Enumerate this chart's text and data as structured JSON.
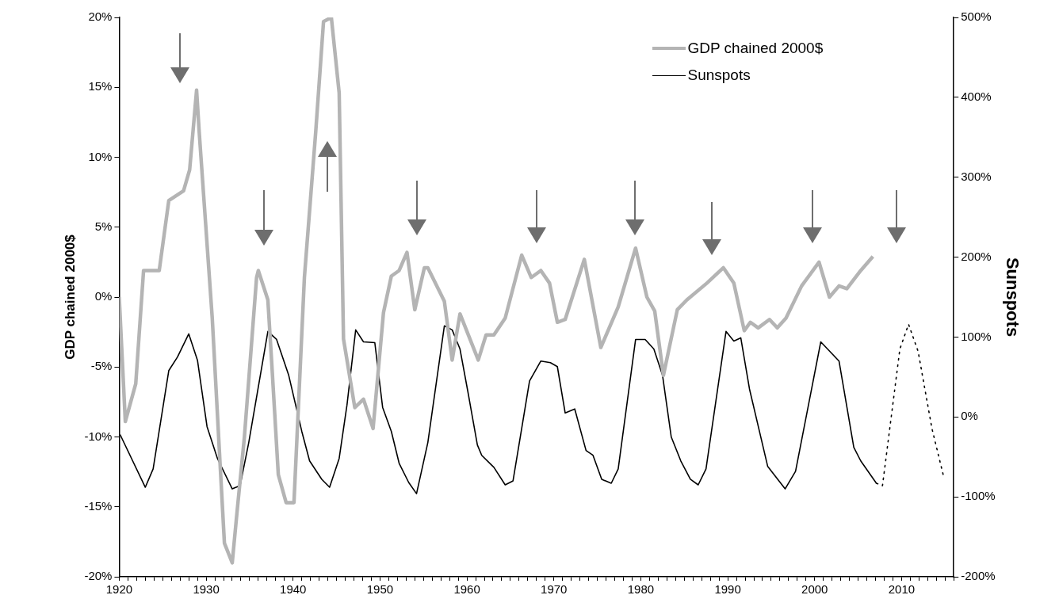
{
  "chart_data": {
    "type": "line",
    "xlabel": null,
    "ylabel": "GDP chained 2000$",
    "y2label": "Sunspots",
    "legend": "top right",
    "grid": false,
    "marker": "none",
    "xlim": [
      1920,
      2016
    ],
    "xticks": [
      1920,
      {
        "value": 1921,
        "label": null
      },
      {
        "value": 1922,
        "label": null
      },
      {
        "value": 1923,
        "label": null
      },
      {
        "value": 1924,
        "label": null
      },
      {
        "value": 1925,
        "label": null
      },
      {
        "value": 1926,
        "label": null
      },
      {
        "value": 1927,
        "label": null
      },
      {
        "value": 1928,
        "label": null
      },
      {
        "value": 1929,
        "label": null
      },
      1930,
      {
        "value": 1931,
        "label": null
      },
      {
        "value": 1932,
        "label": null
      },
      {
        "value": 1933,
        "label": null
      },
      {
        "value": 1934,
        "label": null
      },
      {
        "value": 1935,
        "label": null
      },
      {
        "value": 1936,
        "label": null
      },
      {
        "value": 1937,
        "label": null
      },
      {
        "value": 1938,
        "label": null
      },
      {
        "value": 1939,
        "label": null
      },
      1940,
      {
        "value": 1941,
        "label": null
      },
      {
        "value": 1942,
        "label": null
      },
      {
        "value": 1943,
        "label": null
      },
      {
        "value": 1944,
        "label": null
      },
      {
        "value": 1945,
        "label": null
      },
      {
        "value": 1946,
        "label": null
      },
      {
        "value": 1947,
        "label": null
      },
      {
        "value": 1948,
        "label": null
      },
      {
        "value": 1949,
        "label": null
      },
      1950,
      {
        "value": 1951,
        "label": null
      },
      {
        "value": 1952,
        "label": null
      },
      {
        "value": 1953,
        "label": null
      },
      {
        "value": 1954,
        "label": null
      },
      {
        "value": 1955,
        "label": null
      },
      {
        "value": 1956,
        "label": null
      },
      {
        "value": 1957,
        "label": null
      },
      {
        "value": 1958,
        "label": null
      },
      {
        "value": 1959,
        "label": null
      },
      1960,
      {
        "value": 1961,
        "label": null
      },
      {
        "value": 1962,
        "label": null
      },
      {
        "value": 1963,
        "label": null
      },
      {
        "value": 1964,
        "label": null
      },
      {
        "value": 1965,
        "label": null
      },
      {
        "value": 1966,
        "label": null
      },
      {
        "value": 1967,
        "label": null
      },
      {
        "value": 1968,
        "label": null
      },
      {
        "value": 1969,
        "label": null
      },
      1970,
      {
        "value": 1971,
        "label": null
      },
      {
        "value": 1972,
        "label": null
      },
      {
        "value": 1973,
        "label": null
      },
      {
        "value": 1974,
        "label": null
      },
      {
        "value": 1975,
        "label": null
      },
      {
        "value": 1976,
        "label": null
      },
      {
        "value": 1977,
        "label": null
      },
      {
        "value": 1978,
        "label": null
      },
      {
        "value": 1979,
        "label": null
      },
      1980,
      {
        "value": 1981,
        "label": null
      },
      {
        "value": 1982,
        "label": null
      },
      {
        "value": 1983,
        "label": null
      },
      {
        "value": 1984,
        "label": null
      },
      {
        "value": 1985,
        "label": null
      },
      {
        "value": 1986,
        "label": null
      },
      {
        "value": 1987,
        "label": null
      },
      {
        "value": 1988,
        "label": null
      },
      {
        "value": 1989,
        "label": null
      },
      1990,
      {
        "value": 1991,
        "label": null
      },
      {
        "value": 1992,
        "label": null
      },
      {
        "value": 1993,
        "label": null
      },
      {
        "value": 1994,
        "label": null
      },
      {
        "value": 1995,
        "label": null
      },
      {
        "value": 1996,
        "label": null
      },
      {
        "value": 1997,
        "label": null
      },
      {
        "value": 1998,
        "label": null
      },
      {
        "value": 1999,
        "label": null
      },
      2000,
      {
        "value": 2001,
        "label": null
      },
      {
        "value": 2002,
        "label": null
      },
      {
        "value": 2003,
        "label": null
      },
      {
        "value": 2004,
        "label": null
      },
      {
        "value": 2005,
        "label": null
      },
      {
        "value": 2006,
        "label": null
      },
      {
        "value": 2007,
        "label": null
      },
      {
        "value": 2008,
        "label": null
      },
      {
        "value": 2009,
        "label": null
      },
      2010,
      {
        "value": 2011,
        "label": null
      },
      {
        "value": 2012,
        "label": null
      },
      {
        "value": 2013,
        "label": null
      },
      {
        "value": 2014,
        "label": null
      },
      {
        "value": 2015,
        "label": null
      },
      {
        "value": 2016,
        "label": null
      }
    ],
    "ylim": [
      -20,
      20
    ],
    "yticks": [
      {
        "value": -20,
        "label": "-20%"
      },
      {
        "value": -15,
        "label": "-15%"
      },
      {
        "value": -10,
        "label": "-10%"
      },
      {
        "value": -5,
        "label": "-5%"
      },
      {
        "value": 0,
        "label": "0%"
      },
      {
        "value": 5,
        "label": "5%"
      },
      {
        "value": 10,
        "label": "10%"
      },
      {
        "value": 15,
        "label": "15%"
      },
      {
        "value": 20,
        "label": "20%"
      }
    ],
    "y2lim": [
      -200,
      500
    ],
    "y2ticks": [
      {
        "value": -200,
        "label": "-200%"
      },
      {
        "value": -100,
        "label": "-100%"
      },
      {
        "value": 0,
        "label": "0%"
      },
      {
        "value": 100,
        "label": "100%"
      },
      {
        "value": 200,
        "label": "200%"
      },
      {
        "value": 300,
        "label": "300%"
      },
      {
        "value": 400,
        "label": "400%"
      },
      {
        "value": 500,
        "label": "500%"
      }
    ],
    "series": [
      {
        "name": "GDP chained 2000$",
        "color": "#b4b4b4",
        "axis": "y",
        "x": [
          1920,
          1920.7,
          1921.9,
          1922.8,
          1924.6,
          1925.7,
          1927.4,
          1928.1,
          1928.9,
          1929.2,
          1930.7,
          1931.6,
          1932.1,
          1933,
          1933.5,
          1934.4,
          1935.8,
          1936,
          1937.1,
          1937.6,
          1938.3,
          1939.2,
          1940.1,
          1941.3,
          1942.6,
          1943.5,
          1944.4,
          1945.3,
          1945.8,
          1947.1,
          1948.1,
          1949.2,
          1950.4,
          1951.3,
          1952.2,
          1953.1,
          1954,
          1955.1,
          1955.5,
          1957.4,
          1958.3,
          1959.2,
          1961.3,
          1962.2,
          1963.1,
          1964.4,
          1966.3,
          1967.4,
          1968.5,
          1969.5,
          1970.4,
          1971.3,
          1973.5,
          1975.4,
          1977.4,
          1979.4,
          1980.7,
          1981.6,
          1982.6,
          1984.2,
          1985.3,
          1987.6,
          1989.5,
          1990.7,
          1991.9,
          1992.6,
          1993.5,
          1994.8,
          1995.7,
          1996.7,
          1998.5,
          2000.5,
          2001.7,
          2002.8,
          2003.7,
          2005.3,
          2006.7
        ],
        "values": [
          0,
          -8.9,
          -6.2,
          1.9,
          1.9,
          6.9,
          7.6,
          9.1,
          14.8,
          11.8,
          -1.5,
          -11.9,
          -17.6,
          -19,
          -15.7,
          -10,
          1.4,
          1.9,
          -0.2,
          -5.3,
          -12.7,
          -14.7,
          -14.7,
          1.4,
          11.8,
          19.7,
          20,
          14.6,
          -3,
          -7.9,
          -7.3,
          -9.4,
          -1.1,
          1.5,
          1.9,
          3.2,
          -0.9,
          2.1,
          2.1,
          -0.3,
          -4.5,
          -1.2,
          -4.5,
          -2.7,
          -2.7,
          -1.5,
          3,
          1.4,
          1.9,
          1,
          -1.8,
          -1.6,
          2.7,
          -3.6,
          -0.7,
          3.5,
          0,
          -1,
          -5.6,
          -0.9,
          -0.2,
          1,
          2.1,
          1,
          -2.4,
          -1.8,
          -2.2,
          -1.6,
          -2.2,
          -1.5,
          0.8,
          2.5,
          0,
          0.8,
          0.6,
          1.9,
          2.9
        ]
      },
      {
        "name": "Sunspots",
        "color": "#000000",
        "axis": "y2",
        "x": [
          1920.1,
          1923,
          1923.9,
          1925.7,
          1926.7,
          1928,
          1929,
          1930.1,
          1931.3,
          1933,
          1933.9,
          1934.9,
          1937.1,
          1938.1,
          1939.5,
          1941,
          1941.9,
          1943.3,
          1944.2,
          1945.3,
          1946.2,
          1947.2,
          1948.1,
          1949.4,
          1950.3,
          1951.3,
          1952.2,
          1953.3,
          1954.2,
          1955.5,
          1957.4,
          1958.3,
          1959.2,
          1960.1,
          1961.2,
          1961.7,
          1963.1,
          1964.4,
          1965.3,
          1967.2,
          1968.5,
          1969.6,
          1970.4,
          1971.3,
          1972.4,
          1973.7,
          1974.5,
          1975.5,
          1976.6,
          1977.4,
          1979.4,
          1980.5,
          1981.5,
          1982.5,
          1983.5,
          1984.6,
          1985.7,
          1986.6,
          1987.5,
          1989.8,
          1990.7,
          1991.5,
          1992.5,
          1994.6,
          1996.6,
          1997.8,
          2000.7,
          2002.8,
          2004.5,
          2005.3,
          2007.1
        ],
        "values": [
          -22,
          -88,
          -65,
          58,
          75,
          104,
          71,
          -12,
          -52,
          -90,
          -86,
          -32,
          107,
          97,
          52,
          -18,
          -55,
          -78,
          -88,
          -52,
          15,
          109,
          94,
          93,
          12,
          -18,
          -58,
          -82,
          -96,
          -32,
          114,
          109,
          85,
          32,
          -35,
          -48,
          -63,
          -85,
          -80,
          45,
          70,
          68,
          63,
          5,
          10,
          -42,
          -48,
          -78,
          -83,
          -65,
          97,
          97,
          85,
          52,
          -25,
          -55,
          -78,
          -85,
          -65,
          107,
          95,
          99,
          35,
          -62,
          -90,
          -68,
          94,
          70,
          -38,
          -55,
          -83
        ]
      },
      {
        "color": "#000000",
        "axis": "y2",
        "line_style": "dotted",
        "x": [
          2007.1,
          2007.8,
          2009.8,
          2010.8,
          2011.9,
          2013.5,
          2014.8
        ],
        "values": [
          -83,
          -86,
          85,
          116,
          82,
          -15,
          -73
        ]
      }
    ]
  }
}
